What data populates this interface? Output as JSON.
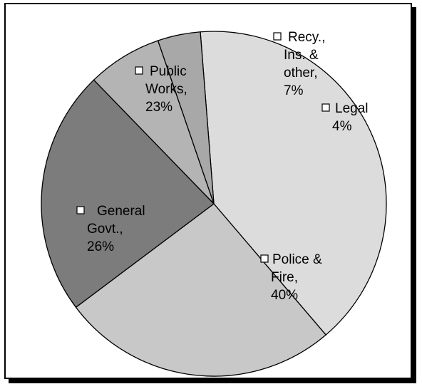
{
  "chart_data": {
    "type": "pie",
    "slices": [
      {
        "label": [
          "Police &",
          "Fire,",
          "40%"
        ],
        "value": 40,
        "color": "#dcdcdc"
      },
      {
        "label": [
          "General",
          "Govt.,",
          "26%"
        ],
        "value": 26,
        "color": "#c8c8c8"
      },
      {
        "label": [
          "Public",
          "Works,",
          "23%"
        ],
        "value": 23,
        "color": "#7c7c7c"
      },
      {
        "label": [
          "Recy.,",
          "Ins. &",
          "other,",
          "7%"
        ],
        "value": 7,
        "color": "#b4b4b4"
      },
      {
        "label": [
          "Legal",
          "4%"
        ],
        "value": 4,
        "color": "#a8a8a8"
      }
    ],
    "border_color": "#000000"
  }
}
